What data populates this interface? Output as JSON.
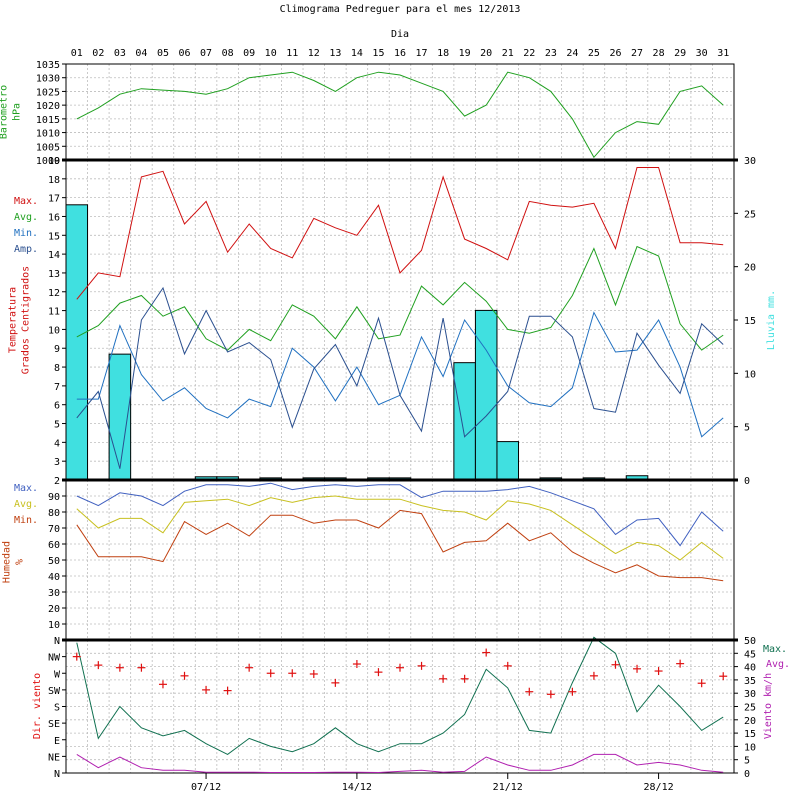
{
  "header": {
    "title": "Climograma Pedreguer para el mes 12/2013",
    "day_axis_title": "Dia"
  },
  "days": [
    "01",
    "02",
    "03",
    "04",
    "05",
    "06",
    "07",
    "08",
    "09",
    "10",
    "11",
    "12",
    "13",
    "14",
    "15",
    "16",
    "17",
    "18",
    "19",
    "20",
    "21",
    "22",
    "23",
    "24",
    "25",
    "26",
    "27",
    "28",
    "29",
    "30",
    "31"
  ],
  "week_labels": [
    "07/12",
    "14/12",
    "21/12",
    "28/12"
  ],
  "colors": {
    "max_temp": "#d01010",
    "avg_temp": "#20a020",
    "min_temp": "#2070c0",
    "amp_temp": "#2a4f8f",
    "rain": "#40e0e0",
    "pressure": "#20a020",
    "hum_max": "#4060c0",
    "hum_avg": "#c8c020",
    "hum_min": "#c04010",
    "wind_max": "#107050",
    "wind_avg": "#b020b0",
    "wind_dir": "#e01010"
  },
  "chart_data": [
    {
      "type": "line",
      "panel": "pressure",
      "ylabel_lines": [
        "Barometro",
        "hPa"
      ],
      "ylim": [
        1000,
        1035
      ],
      "y_ticks": [
        "1000",
        "1005",
        "1010",
        "1015",
        "1020",
        "1025",
        "1030",
        "1035"
      ],
      "x": [
        1,
        2,
        3,
        4,
        5,
        6,
        7,
        8,
        9,
        10,
        11,
        12,
        13,
        14,
        15,
        16,
        17,
        18,
        19,
        20,
        21,
        22,
        23,
        24,
        25,
        26,
        27,
        28,
        29,
        30,
        31
      ],
      "series": [
        {
          "key": "pressure",
          "values": [
            1015,
            1019,
            1024,
            1026,
            1025.5,
            1025,
            1024,
            1026,
            1030,
            1031,
            1032,
            1029,
            1025,
            1030,
            1032,
            1031,
            1028,
            1025,
            1016,
            1020,
            1032,
            1030,
            1025,
            1015,
            1001,
            1010,
            1014,
            1013,
            1025,
            1027,
            1020
          ]
        }
      ]
    },
    {
      "type": "bar+line",
      "panel": "temperature",
      "ylabel_lines": [
        "Temperatura",
        "Grados Centigrados"
      ],
      "ylim": [
        2,
        19
      ],
      "y_ticks": [
        "2",
        "3",
        "4",
        "5",
        "6",
        "7",
        "8",
        "9",
        "10",
        "11",
        "12",
        "13",
        "14",
        "15",
        "16",
        "17",
        "18",
        "19"
      ],
      "y2label": "Lluvia mm.",
      "y2lim": [
        0,
        30
      ],
      "y2_ticks": [
        "0",
        "5",
        "10",
        "15",
        "20",
        "25",
        "30"
      ],
      "legend": [
        "Max.",
        "Avg.",
        "Min.",
        "Amp."
      ],
      "x": [
        1,
        2,
        3,
        4,
        5,
        6,
        7,
        8,
        9,
        10,
        11,
        12,
        13,
        14,
        15,
        16,
        17,
        18,
        19,
        20,
        21,
        22,
        23,
        24,
        25,
        26,
        27,
        28,
        29,
        30,
        31
      ],
      "series": [
        {
          "key": "max",
          "name": "Max.",
          "values": [
            11.6,
            13.0,
            12.8,
            18.1,
            18.4,
            15.6,
            16.8,
            14.1,
            15.6,
            14.3,
            13.8,
            15.9,
            15.4,
            15.0,
            16.6,
            13.0,
            14.2,
            18.1,
            14.8,
            14.3,
            13.7,
            16.8,
            16.6,
            16.5,
            16.7,
            14.3,
            18.6,
            18.6,
            14.6,
            14.6,
            14.5
          ]
        },
        {
          "key": "avg",
          "name": "Avg.",
          "values": [
            9.6,
            10.2,
            11.4,
            11.8,
            10.7,
            11.2,
            9.5,
            8.9,
            10.0,
            9.4,
            11.3,
            10.7,
            9.5,
            11.2,
            9.5,
            9.7,
            12.3,
            11.3,
            12.5,
            11.5,
            10.0,
            9.8,
            10.1,
            11.8,
            14.3,
            11.3,
            14.4,
            13.9,
            10.3,
            8.9,
            9.7
          ]
        },
        {
          "key": "min",
          "name": "Min.",
          "values": [
            6.3,
            6.3,
            10.2,
            7.6,
            6.2,
            6.9,
            5.8,
            5.3,
            6.3,
            5.9,
            9.0,
            8.0,
            6.2,
            8.0,
            6.0,
            6.5,
            9.6,
            7.5,
            10.5,
            8.9,
            7.0,
            6.1,
            5.9,
            6.9,
            10.9,
            8.8,
            8.9,
            10.5,
            8.0,
            4.3,
            5.3
          ]
        },
        {
          "key": "amp",
          "name": "Amp.",
          "values": [
            5.3,
            6.7,
            2.6,
            10.5,
            12.2,
            8.7,
            11.0,
            8.8,
            9.3,
            8.4,
            4.8,
            7.9,
            9.2,
            7.0,
            10.6,
            6.5,
            4.6,
            10.6,
            4.3,
            5.4,
            6.7,
            10.7,
            10.7,
            9.6,
            5.8,
            5.6,
            9.8,
            8.1,
            6.6,
            10.3,
            9.2
          ]
        }
      ],
      "rain": {
        "key": "rain",
        "name": "Lluvia mm.",
        "values": [
          25.8,
          0,
          11.8,
          0,
          0,
          0,
          0.3,
          0.3,
          0,
          0.2,
          0,
          0.2,
          0.2,
          0,
          0.2,
          0.2,
          0,
          0,
          11.0,
          15.9,
          3.6,
          0,
          0.2,
          0,
          0.2,
          0,
          0.4,
          0,
          0,
          0,
          0
        ]
      }
    },
    {
      "type": "line",
      "panel": "humidity",
      "ylabel_lines": [
        "Humedad",
        "%"
      ],
      "ylim": [
        0,
        100
      ],
      "y_ticks": [
        "10",
        "20",
        "30",
        "40",
        "50",
        "60",
        "70",
        "80",
        "90"
      ],
      "legend": [
        "Max.",
        "Avg.",
        "Min."
      ],
      "x": [
        1,
        2,
        3,
        4,
        5,
        6,
        7,
        8,
        9,
        10,
        11,
        12,
        13,
        14,
        15,
        16,
        17,
        18,
        19,
        20,
        21,
        22,
        23,
        24,
        25,
        26,
        27,
        28,
        29,
        30,
        31
      ],
      "series": [
        {
          "key": "hum_max",
          "name": "Max.",
          "values": [
            90,
            84,
            92,
            90,
            84,
            93,
            97,
            97,
            96,
            98,
            94,
            96,
            97,
            96,
            97,
            97,
            89,
            93,
            93,
            93,
            94,
            96,
            92,
            87,
            82,
            66,
            75,
            76,
            59,
            80,
            68
          ]
        },
        {
          "key": "hum_avg",
          "name": "Avg.",
          "values": [
            82,
            70,
            76,
            76,
            67,
            86,
            87,
            88,
            84,
            89,
            86,
            89,
            90,
            88,
            88,
            88,
            84,
            81,
            80,
            75,
            87,
            85,
            81,
            72,
            63,
            54,
            61,
            59,
            50,
            61,
            51
          ]
        },
        {
          "key": "hum_min",
          "name": "Min.",
          "values": [
            72,
            52,
            52,
            52,
            49,
            74,
            66,
            73,
            65,
            78,
            78,
            73,
            75,
            75,
            70,
            81,
            79,
            55,
            61,
            62,
            73,
            62,
            67,
            55,
            48,
            42,
            47,
            40,
            39,
            39,
            37
          ]
        }
      ]
    },
    {
      "type": "line+scatter",
      "panel": "wind",
      "ylabel": "Dir. viento",
      "direction_ticks": [
        "N",
        "NE",
        "E",
        "SE",
        "S",
        "SW",
        "W",
        "NW",
        "N"
      ],
      "y2label": "Viento km/h",
      "y2lim": [
        0,
        50
      ],
      "y2_ticks": [
        "0",
        "5",
        "10",
        "15",
        "20",
        "25",
        "30",
        "35",
        "40",
        "45",
        "50"
      ],
      "legend": [
        "Max.",
        "Avg."
      ],
      "x": [
        1,
        2,
        3,
        4,
        5,
        6,
        7,
        8,
        9,
        10,
        11,
        12,
        13,
        14,
        15,
        16,
        17,
        18,
        19,
        20,
        21,
        22,
        23,
        24,
        25,
        26,
        27,
        28,
        29,
        30,
        31
      ],
      "series": [
        {
          "key": "wind_max",
          "name": "Max.",
          "values": [
            49,
            13,
            25,
            17,
            14,
            16,
            11,
            7,
            13,
            10,
            8,
            11,
            17,
            11,
            8,
            11,
            11,
            15,
            22,
            39,
            32,
            16,
            15,
            34,
            51,
            45,
            23,
            33,
            25,
            16,
            21
          ]
        },
        {
          "key": "wind_avg",
          "name": "Avg.",
          "values": [
            7,
            2,
            6,
            2,
            1,
            1,
            0.3,
            0.3,
            0.3,
            0.2,
            0.2,
            0.2,
            0.3,
            0.3,
            0.2,
            0.6,
            1,
            0.3,
            0.6,
            6,
            3,
            1,
            1,
            3,
            7,
            7,
            3,
            4,
            3,
            1,
            0.3
          ]
        }
      ],
      "direction_deg": [
        315,
        292,
        285,
        285,
        240,
        263,
        225,
        223,
        285,
        270,
        270,
        268,
        244,
        295,
        273,
        285,
        290,
        255,
        255,
        326,
        290,
        220,
        213,
        220,
        263,
        293,
        282,
        276,
        296,
        243,
        262
      ]
    }
  ]
}
